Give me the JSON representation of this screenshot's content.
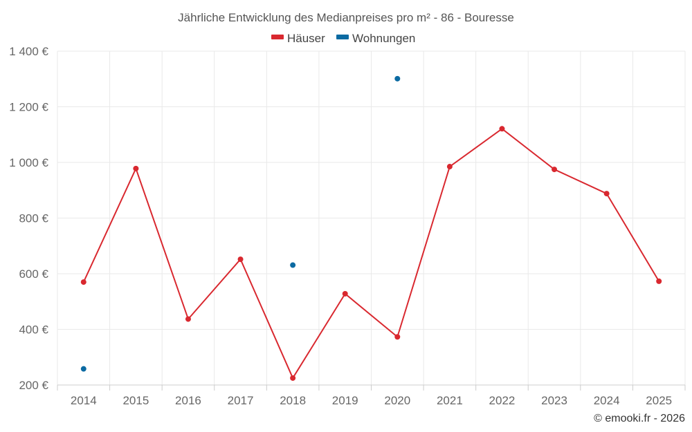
{
  "chart_data": {
    "type": "line",
    "title": "Jährliche Entwicklung des Medianpreises pro m² - 86 - Bouresse",
    "categories": [
      "2014",
      "2015",
      "2016",
      "2017",
      "2018",
      "2019",
      "2020",
      "2021",
      "2022",
      "2023",
      "2024",
      "2025"
    ],
    "series": [
      {
        "name": "Häuser",
        "color": "#d9282f",
        "values": [
          570,
          978,
          437,
          652,
          225,
          528,
          373,
          985,
          1121,
          975,
          888,
          573
        ],
        "line": true
      },
      {
        "name": "Wohnungen",
        "color": "#0b6aa2",
        "values": [
          258,
          null,
          null,
          null,
          631,
          null,
          1301,
          null,
          null,
          null,
          null,
          null
        ],
        "line": false
      }
    ],
    "ylim": [
      200,
      1400
    ],
    "yticks": [
      200,
      400,
      600,
      800,
      1000,
      1200,
      1400
    ],
    "ytick_labels": [
      "200 €",
      "400 €",
      "600 €",
      "800 €",
      "1 000 €",
      "1 200 €",
      "1 400 €"
    ],
    "xlabel": "",
    "ylabel": "",
    "legend_position": "top-center",
    "grid": true
  },
  "credit": "© emooki.fr - 2026"
}
